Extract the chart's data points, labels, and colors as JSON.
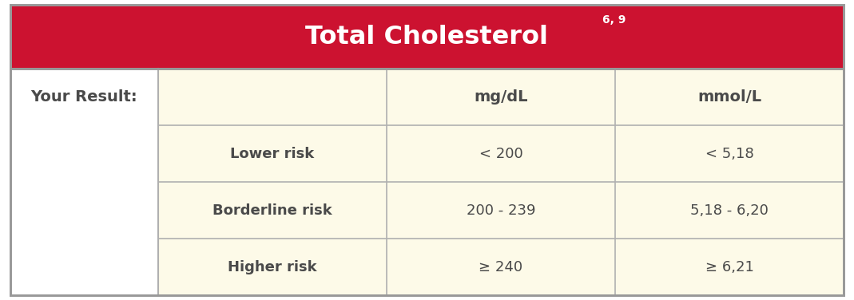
{
  "title": "Total Cholesterol",
  "title_superscript": "6, 9",
  "title_bg_color": "#CC1230",
  "title_text_color": "#FFFFFF",
  "cell_bg_color": "#FDFAE8",
  "white_bg_color": "#FFFFFF",
  "border_color": "#B0B0B0",
  "label_color": "#4A4A4A",
  "your_result_label": "Your Result:",
  "col_headers": [
    "",
    "mg/dL",
    "mmol/L"
  ],
  "rows": [
    [
      "Lower risk",
      "< 200",
      "< 5,18"
    ],
    [
      "Borderline risk",
      "200 - 239",
      "5,18 - 6,20"
    ],
    [
      "Higher risk",
      "≥ 240",
      "≥ 6,21"
    ]
  ],
  "figure_bg": "#FFFFFF",
  "outer_border_color": "#999999",
  "outer_border_lw": 2.0,
  "inner_border_lw": 1.2
}
